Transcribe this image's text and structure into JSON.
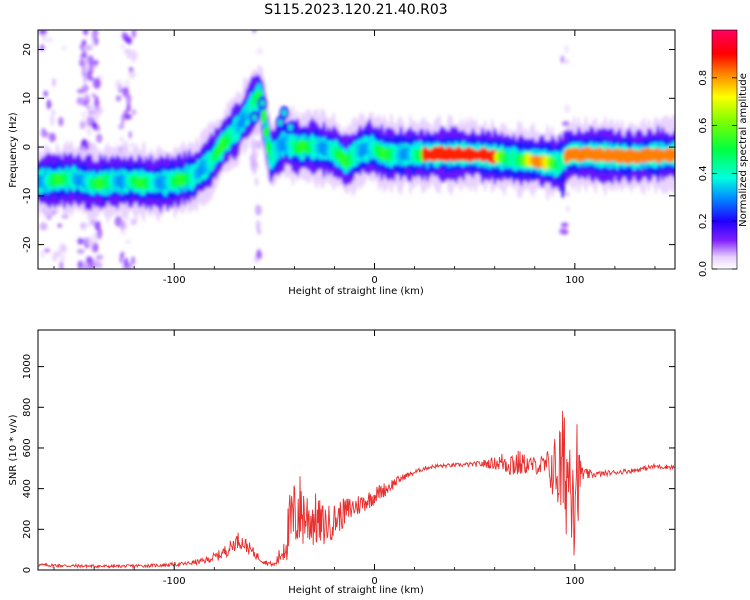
{
  "chart_data": [
    {
      "type": "heatmap",
      "title": "S115.2023.120.21.40.R03",
      "xlabel": "Height of straight line (km)",
      "ylabel": "Frequency (Hz)",
      "xlim": [
        -168,
        150
      ],
      "ylim": [
        -25,
        24
      ],
      "xticks": [
        -100,
        0,
        100
      ],
      "xtick_labels": [
        "-100",
        "0",
        "100"
      ],
      "yticks": [
        -20,
        -10,
        0,
        10,
        20
      ],
      "ytick_labels": [
        "-20",
        "-10",
        "0",
        "10",
        "20"
      ],
      "colorbar": {
        "label": "Normalized spectral amplitude",
        "range": [
          0,
          1
        ],
        "ticks": [
          0.0,
          0.2,
          0.4,
          0.6,
          0.8
        ],
        "tick_labels": [
          "0.0",
          "0.2",
          "0.4",
          "0.6",
          "0.8"
        ],
        "colormap": "gist_ncar-like"
      },
      "ridge": [
        {
          "x": -168,
          "y": -7
        },
        {
          "x": -150,
          "y": -6.5
        },
        {
          "x": -140,
          "y": -7.5
        },
        {
          "x": -130,
          "y": -7
        },
        {
          "x": -120,
          "y": -7
        },
        {
          "x": -110,
          "y": -7.5
        },
        {
          "x": -100,
          "y": -7
        },
        {
          "x": -90,
          "y": -6
        },
        {
          "x": -82,
          "y": -3
        },
        {
          "x": -75,
          "y": 1
        },
        {
          "x": -68,
          "y": 4
        },
        {
          "x": -62,
          "y": 8
        },
        {
          "x": -57,
          "y": 11
        },
        {
          "x": -52,
          "y": -2
        },
        {
          "x": -45,
          "y": 1
        },
        {
          "x": -38,
          "y": 0
        },
        {
          "x": -30,
          "y": 0
        },
        {
          "x": -20,
          "y": -1
        },
        {
          "x": -14,
          "y": -3
        },
        {
          "x": -8,
          "y": -1
        },
        {
          "x": -2,
          "y": 0
        },
        {
          "x": 5,
          "y": -1.5
        },
        {
          "x": 15,
          "y": -1.5
        },
        {
          "x": 30,
          "y": -1.5
        },
        {
          "x": 50,
          "y": -1.5
        },
        {
          "x": 70,
          "y": -2.5
        },
        {
          "x": 85,
          "y": -3
        },
        {
          "x": 92,
          "y": -3.5
        },
        {
          "x": 97,
          "y": -1.5
        },
        {
          "x": 110,
          "y": -1.5
        },
        {
          "x": 125,
          "y": -2
        },
        {
          "x": 150,
          "y": -1.5
        }
      ]
    },
    {
      "type": "line",
      "title": "",
      "xlabel": "Height of straight line (km)",
      "ylabel": "SNR (10 * v/v)",
      "xlim": [
        -168,
        150
      ],
      "ylim": [
        0,
        1180
      ],
      "xticks": [
        -100,
        0,
        100
      ],
      "xtick_labels": [
        "-100",
        "0",
        "100"
      ],
      "yticks": [
        0,
        200,
        400,
        600,
        800,
        1000
      ],
      "ytick_labels": [
        "0",
        "200",
        "400",
        "600",
        "800",
        "1000"
      ],
      "color": "#e83030",
      "grid": false,
      "x": [
        -168,
        -150,
        -130,
        -110,
        -95,
        -85,
        -78,
        -72,
        -68,
        -64,
        -60,
        -55,
        -50,
        -46,
        -42,
        -38,
        -34,
        -30,
        -26,
        -22,
        -18,
        -14,
        -10,
        -6,
        -2,
        2,
        6,
        10,
        15,
        20,
        25,
        30,
        40,
        50,
        60,
        65,
        70,
        75,
        80,
        85,
        88,
        91,
        93,
        95,
        97,
        99,
        100,
        101,
        102,
        103,
        105,
        110,
        120,
        130,
        140,
        150
      ],
      "y": [
        25,
        20,
        18,
        22,
        30,
        45,
        70,
        110,
        150,
        120,
        80,
        40,
        25,
        90,
        220,
        300,
        260,
        250,
        220,
        230,
        260,
        290,
        310,
        330,
        350,
        380,
        400,
        430,
        460,
        480,
        500,
        510,
        515,
        520,
        525,
        530,
        525,
        520,
        515,
        510,
        500,
        490,
        480,
        470,
        480,
        520,
        560,
        500,
        450,
        480,
        470,
        470,
        480,
        490,
        510,
        505
      ],
      "noise_amplitude": [
        8,
        8,
        7,
        8,
        10,
        15,
        25,
        35,
        40,
        35,
        25,
        12,
        10,
        60,
        180,
        200,
        160,
        140,
        110,
        90,
        80,
        70,
        60,
        50,
        45,
        40,
        35,
        25,
        15,
        12,
        10,
        10,
        10,
        12,
        30,
        60,
        80,
        50,
        40,
        60,
        120,
        200,
        300,
        350,
        250,
        400,
        600,
        400,
        150,
        60,
        30,
        15,
        12,
        12,
        12,
        12
      ]
    }
  ]
}
